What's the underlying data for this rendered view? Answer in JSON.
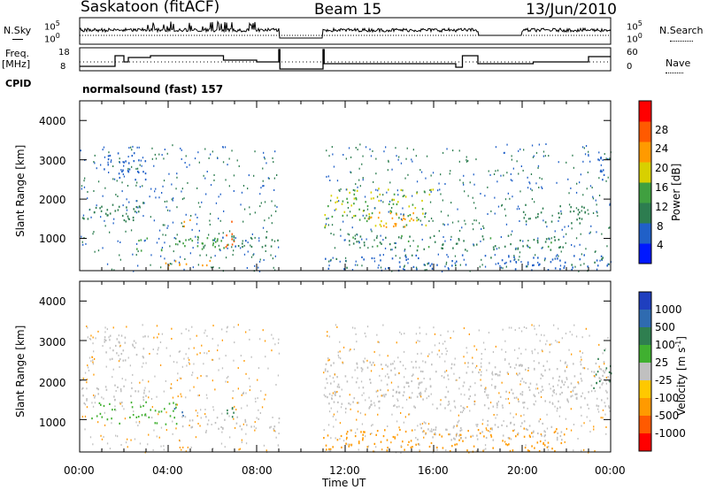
{
  "header": {
    "station": "Saskatoon (fitACF)",
    "beam": "Beam 15",
    "date": "13/Jun/2010"
  },
  "top_panels": {
    "nsky_label": "N.Sky",
    "nsky_ticks": [
      "10^5",
      "10^0"
    ],
    "nsearch_label": "N.Search",
    "nsearch_ticks": [
      "10^5",
      "10^0"
    ],
    "freq_label": "Freq.",
    "freq_unit": "[MHz]",
    "freq_ticks": [
      "18",
      "8"
    ],
    "nave_label": "Nave",
    "nave_ticks": [
      "60",
      "0"
    ],
    "cpid_label": "CPID",
    "cpid_value": "normalsound (fast) 157"
  },
  "x_axis": {
    "label": "Time UT",
    "ticks": [
      "00:00",
      "04:00",
      "08:00",
      "12:00",
      "16:00",
      "20:00",
      "00:00"
    ]
  },
  "chart_data": [
    {
      "type": "heatmap",
      "panel": "power",
      "ylabel": "Slant Range [km]",
      "y_ticks": [
        "1000",
        "2000",
        "3000",
        "4000"
      ],
      "ylim": [
        180,
        4500
      ],
      "xlim": [
        0,
        24
      ],
      "colorbar_label": "Power [dB]",
      "colorbar_ticks": [
        "4",
        "8",
        "12",
        "16",
        "20",
        "24",
        "28"
      ],
      "colorbar_colors": [
        "#0018ff",
        "#2060c8",
        "#2d7d50",
        "#40a040",
        "#d8d000",
        "#ff9a00",
        "#ff5a00",
        "#ff0000"
      ],
      "regions": [
        {
          "t0": 0.1,
          "t1": 2.9,
          "r0": 1400,
          "r1": 1900,
          "level": 10
        },
        {
          "t0": 1.0,
          "t1": 3.0,
          "r0": 2500,
          "r1": 3200,
          "level": 6
        },
        {
          "t0": 2.5,
          "t1": 7.0,
          "r0": 700,
          "r1": 1100,
          "level": 14
        },
        {
          "t0": 3.8,
          "t1": 6.0,
          "r0": 250,
          "r1": 500,
          "level": 22
        },
        {
          "t0": 4.5,
          "t1": 5.0,
          "r0": 1200,
          "r1": 1500,
          "level": 22
        },
        {
          "t0": 6.5,
          "t1": 7.0,
          "r0": 800,
          "r1": 1500,
          "level": 26
        },
        {
          "t0": 6.0,
          "t1": 9.0,
          "r0": 800,
          "r1": 1100,
          "level": 9
        },
        {
          "t0": 11.0,
          "t1": 16.0,
          "r0": 1300,
          "r1": 2300,
          "level": 16
        },
        {
          "t0": 13.0,
          "t1": 15.5,
          "r0": 1300,
          "r1": 1700,
          "level": 22
        },
        {
          "t0": 12.0,
          "t1": 22.0,
          "r0": 700,
          "r1": 1100,
          "level": 11
        },
        {
          "t0": 11.0,
          "t1": 24.0,
          "r0": 200,
          "r1": 600,
          "level": 7
        },
        {
          "t0": 20.0,
          "t1": 23.0,
          "r0": 1400,
          "r1": 1900,
          "level": 10
        },
        {
          "t0": 23.3,
          "t1": 24.0,
          "r0": 2300,
          "r1": 3200,
          "level": 6
        }
      ]
    },
    {
      "type": "heatmap",
      "panel": "velocity",
      "ylabel": "Slant Range [km]",
      "y_ticks": [
        "1000",
        "2000",
        "3000",
        "4000"
      ],
      "ylim": [
        180,
        4500
      ],
      "xlim": [
        0,
        24
      ],
      "colorbar_label": "Velocity [m s^-1]",
      "colorbar_ticks": [
        "1000",
        "500",
        "100",
        "25",
        "-25",
        "-100",
        "-500",
        "-1000"
      ],
      "colorbar_colors": [
        "#1f3fbf",
        "#2f6bb0",
        "#2f7f50",
        "#40b030",
        "#c0c0c0",
        "#ffc800",
        "#ff9a00",
        "#ff5a00",
        "#ff0000"
      ],
      "regions": [
        {
          "t0": 0.1,
          "t1": 3.0,
          "r0": 1400,
          "r1": 1900,
          "level": 0
        },
        {
          "t0": 1.0,
          "t1": 3.0,
          "r0": 2500,
          "r1": 3200,
          "level": 0
        },
        {
          "t0": 0.5,
          "t1": 4.5,
          "r0": 900,
          "r1": 1500,
          "level": 80
        },
        {
          "t0": 4.2,
          "t1": 4.8,
          "r0": 1100,
          "r1": 1450,
          "level": 800
        },
        {
          "t0": 4.5,
          "t1": 9.0,
          "r0": 700,
          "r1": 1100,
          "level": 0
        },
        {
          "t0": 6.5,
          "t1": 7.0,
          "r0": 900,
          "r1": 1500,
          "level": 150
        },
        {
          "t0": 11.0,
          "t1": 24.0,
          "r0": 1300,
          "r1": 2500,
          "level": 0
        },
        {
          "t0": 11.0,
          "t1": 22.0,
          "r0": 200,
          "r1": 800,
          "level": -300
        },
        {
          "t0": 15.0,
          "t1": 22.0,
          "r0": 500,
          "r1": 1000,
          "level": 0
        },
        {
          "t0": 23.2,
          "t1": 24.0,
          "r0": 1800,
          "r1": 2800,
          "level": 150
        }
      ]
    }
  ]
}
